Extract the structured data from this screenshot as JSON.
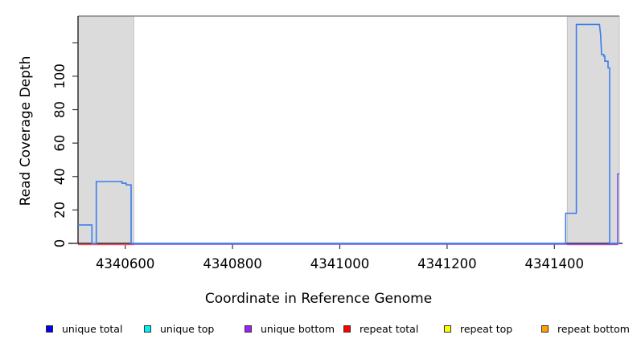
{
  "chart_data": {
    "type": "line",
    "title": "",
    "xlabel": "Coordinate in Reference Genome",
    "ylabel": "Read Coverage Depth",
    "x_range": [
      4340512,
      4341521
    ],
    "y_range": [
      0,
      136
    ],
    "x_ticks": [
      4340600,
      4340800,
      4341000,
      4341200,
      4341400
    ],
    "y_ticks": [
      0,
      20,
      40,
      60,
      80,
      100
    ],
    "y_ticks_unlabeled": [
      120
    ],
    "grid": false,
    "shaded_regions": [
      {
        "name": "repeat-region-left",
        "start": 4340512,
        "end": 4340616,
        "fill": "#dbdbdb"
      },
      {
        "name": "repeat-region-right",
        "start": 4341424,
        "end": 4341521,
        "fill": "#dbdbdb"
      }
    ],
    "top_border_color": "#8a8a8a",
    "series": [
      {
        "name": "repeat total",
        "color": "#f0506e",
        "segments": [
          [
            [
              4340512,
              0
            ],
            [
              4340616,
              0
            ]
          ],
          [
            [
              4341424,
              0
            ],
            [
              4341519,
              0
            ]
          ]
        ]
      },
      {
        "name": "unique bottom",
        "color": "#7a58ea",
        "segments": [
          [
            [
              4340611,
              0
            ],
            [
              4341518,
              0
            ],
            [
              4341518,
              42
            ],
            [
              4341521,
              42
            ]
          ]
        ]
      },
      {
        "name": "unique total",
        "color": "#3b7dee",
        "segments": [
          [
            [
              4340512,
              11
            ],
            [
              4340538,
              11
            ],
            [
              4340538,
              0
            ],
            [
              4340546,
              0
            ],
            [
              4340546,
              37
            ],
            [
              4340594,
              37
            ],
            [
              4340594,
              36
            ],
            [
              4340602,
              36
            ],
            [
              4340602,
              35
            ],
            [
              4340611,
              35
            ],
            [
              4340611,
              0
            ],
            [
              4341421,
              0
            ],
            [
              4341421,
              18
            ],
            [
              4341441,
              18
            ],
            [
              4341441,
              131
            ],
            [
              4341484,
              131
            ],
            [
              4341486,
              125
            ],
            [
              4341488,
              113
            ],
            [
              4341492,
              113
            ],
            [
              4341492,
              112
            ],
            [
              4341494,
              112
            ],
            [
              4341494,
              109
            ],
            [
              4341500,
              109
            ],
            [
              4341500,
              105
            ],
            [
              4341503,
              105
            ],
            [
              4341503,
              0
            ],
            [
              4341521,
              0
            ]
          ]
        ]
      }
    ]
  },
  "legend": {
    "items": [
      {
        "label": "unique total",
        "color": "#0000ee"
      },
      {
        "label": "unique top",
        "color": "#00f0f0"
      },
      {
        "label": "unique bottom",
        "color": "#a020f0"
      },
      {
        "label": "repeat total",
        "color": "#ff0000"
      },
      {
        "label": "repeat top",
        "color": "#ffff00"
      },
      {
        "label": "repeat bottom",
        "color": "#ffa200"
      }
    ]
  }
}
